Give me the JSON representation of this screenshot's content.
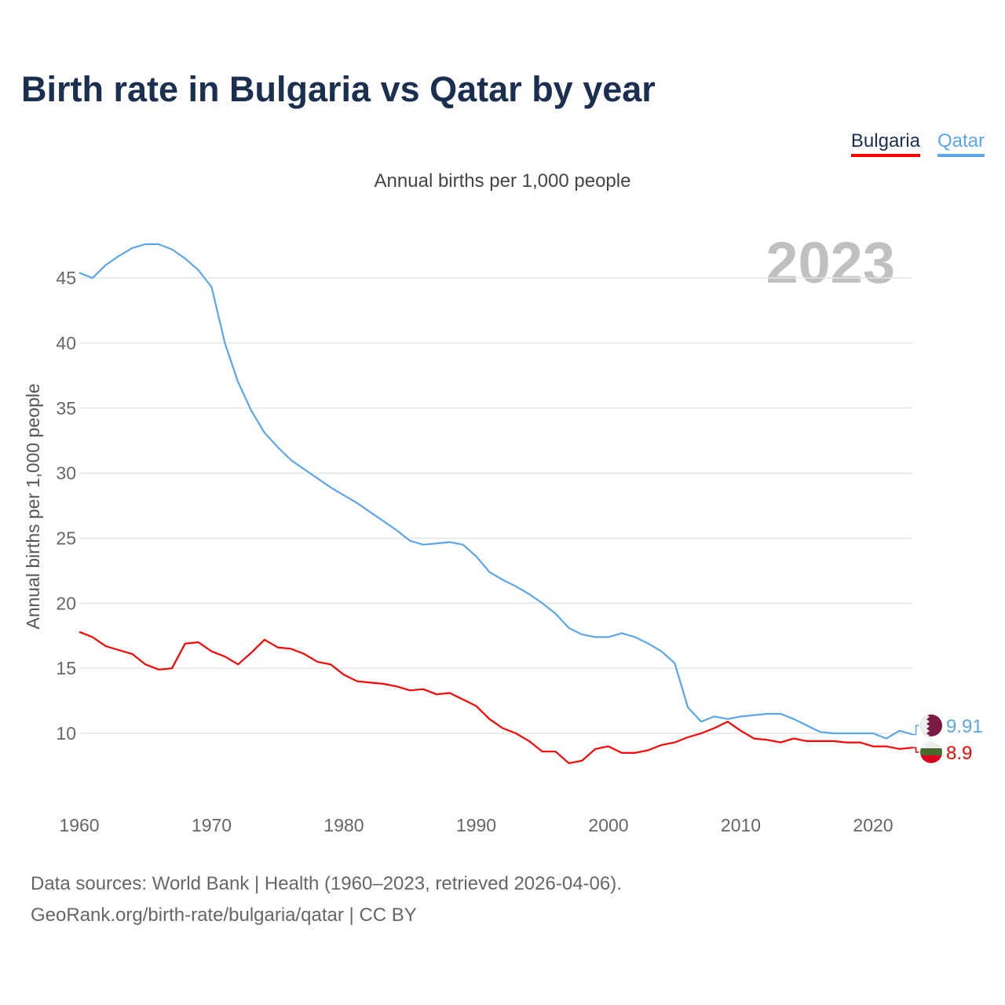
{
  "title": "Birth rate in Bulgaria vs Qatar by year",
  "legend": [
    {
      "label": "Bulgaria",
      "color": "#ff0000"
    },
    {
      "label": "Qatar",
      "color": "#5aa6ea"
    }
  ],
  "subtitle": "Annual births per 1,000 people",
  "year_watermark": "2023",
  "footer": {
    "line1": "Data sources: World Bank | Health (1960–2023, retrieved 2026-04-06).",
    "line2": "GeoRank.org/birth-rate/bulgaria/qatar | CC BY"
  },
  "chart_data": {
    "type": "line",
    "title": "Birth rate in Bulgaria vs Qatar by year",
    "ylabel": "Annual births per 1,000 people",
    "xlabel": "",
    "xlim": [
      1960,
      2023
    ],
    "ylim": [
      5,
      48
    ],
    "x_ticks": [
      "1960",
      "1970",
      "1980",
      "1990",
      "2000",
      "2010",
      "2020"
    ],
    "y_ticks": [
      "10",
      "15",
      "20",
      "25",
      "30",
      "35",
      "40",
      "45"
    ],
    "grid": true,
    "legend_position": "top-right",
    "x": [
      1960,
      1961,
      1962,
      1963,
      1964,
      1965,
      1966,
      1967,
      1968,
      1969,
      1970,
      1971,
      1972,
      1973,
      1974,
      1975,
      1976,
      1977,
      1978,
      1979,
      1980,
      1981,
      1982,
      1983,
      1984,
      1985,
      1986,
      1987,
      1988,
      1989,
      1990,
      1991,
      1992,
      1993,
      1994,
      1995,
      1996,
      1997,
      1998,
      1999,
      2000,
      2001,
      2002,
      2003,
      2004,
      2005,
      2006,
      2007,
      2008,
      2009,
      2010,
      2011,
      2012,
      2013,
      2014,
      2015,
      2016,
      2017,
      2018,
      2019,
      2020,
      2021,
      2022,
      2023
    ],
    "series": [
      {
        "name": "Bulgaria",
        "color": "#ff0000",
        "end_label": "8.9",
        "values": [
          17.8,
          17.4,
          16.7,
          16.4,
          16.1,
          15.3,
          14.9,
          15.0,
          16.9,
          17.0,
          16.3,
          15.9,
          15.3,
          16.2,
          17.2,
          16.6,
          16.5,
          16.1,
          15.5,
          15.3,
          14.5,
          14.0,
          13.9,
          13.8,
          13.6,
          13.3,
          13.4,
          13.0,
          13.1,
          12.6,
          12.1,
          11.1,
          10.4,
          10.0,
          9.4,
          8.6,
          8.6,
          7.7,
          7.9,
          8.8,
          9.0,
          8.5,
          8.5,
          8.7,
          9.1,
          9.3,
          9.7,
          10.0,
          10.4,
          10.9,
          10.2,
          9.6,
          9.5,
          9.3,
          9.6,
          9.4,
          9.4,
          9.4,
          9.3,
          9.3,
          9.0,
          9.0,
          8.8,
          8.9
        ]
      },
      {
        "name": "Qatar",
        "color": "#5aa6ea",
        "end_label": "9.91",
        "values": [
          45.4,
          45.0,
          46.0,
          46.7,
          47.3,
          47.6,
          47.6,
          47.2,
          46.5,
          45.6,
          44.3,
          40.0,
          37.0,
          34.8,
          33.1,
          32.0,
          31.0,
          30.3,
          29.6,
          28.9,
          28.3,
          27.7,
          27.0,
          26.3,
          25.6,
          24.8,
          24.5,
          24.6,
          24.7,
          24.5,
          23.6,
          22.4,
          21.8,
          21.3,
          20.7,
          20.0,
          19.2,
          18.1,
          17.6,
          17.4,
          17.4,
          17.7,
          17.4,
          16.9,
          16.3,
          15.4,
          12.0,
          10.9,
          11.3,
          11.1,
          11.3,
          11.4,
          11.5,
          11.5,
          11.1,
          10.6,
          10.1,
          10.0,
          10.0,
          10.0,
          10.0,
          9.6,
          10.2,
          9.91
        ]
      }
    ]
  }
}
